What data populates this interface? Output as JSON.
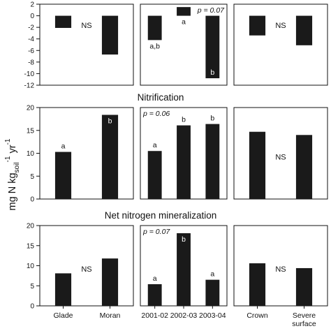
{
  "figure": {
    "ylabel": {
      "main": "mg N kg",
      "sub": "soil",
      "sup1": "-1",
      "mid": " yr",
      "sup2": "-1"
    }
  },
  "chart_data": [
    {
      "type": "bar",
      "row": 0,
      "col": 0,
      "title": "",
      "categories": [
        "Glade",
        "Moran"
      ],
      "values": [
        -2.1,
        -6.7
      ],
      "ylim": [
        -12,
        2
      ],
      "yticks": [
        2,
        0,
        -2,
        -4,
        -6,
        -8,
        -10,
        -12
      ],
      "tick_labels": [
        "2",
        "0",
        "-2",
        "-4",
        "-6",
        "-8",
        "-10",
        "-12"
      ],
      "letters": [
        "",
        ""
      ],
      "annotation": "NS"
    },
    {
      "type": "bar",
      "row": 0,
      "col": 1,
      "title": "",
      "categories": [
        "2001-02",
        "2002-03",
        "2003-04"
      ],
      "values": [
        -4.2,
        1.5,
        -10.8
      ],
      "ylim": [
        -12,
        2
      ],
      "letters": [
        "a,b",
        "a",
        "b"
      ],
      "annotation": "p = 0.07"
    },
    {
      "type": "bar",
      "row": 0,
      "col": 2,
      "title": "",
      "categories": [
        "Crown",
        "Severe surface"
      ],
      "values": [
        -3.4,
        -5.1
      ],
      "ylim": [
        -12,
        2
      ],
      "letters": [
        "",
        ""
      ],
      "annotation": "NS"
    },
    {
      "type": "bar",
      "row": 1,
      "col": 0,
      "title": "Nitrification",
      "categories": [
        "Glade",
        "Moran"
      ],
      "values": [
        10.3,
        18.4
      ],
      "ylim": [
        0,
        20
      ],
      "yticks": [
        0,
        5,
        10,
        15,
        20
      ],
      "tick_labels": [
        "0",
        "5",
        "10",
        "15",
        "20"
      ],
      "letters": [
        "a",
        "b"
      ],
      "annotation": ""
    },
    {
      "type": "bar",
      "row": 1,
      "col": 1,
      "title": "",
      "categories": [
        "2001-02",
        "2002-03",
        "2003-04"
      ],
      "values": [
        10.5,
        16.1,
        16.4
      ],
      "ylim": [
        0,
        20
      ],
      "letters": [
        "a",
        "b",
        "b"
      ],
      "annotation": "p = 0.06"
    },
    {
      "type": "bar",
      "row": 1,
      "col": 2,
      "title": "",
      "categories": [
        "Crown",
        "Severe surface"
      ],
      "values": [
        14.7,
        14.0
      ],
      "ylim": [
        0,
        20
      ],
      "letters": [
        "",
        ""
      ],
      "annotation": "NS"
    },
    {
      "type": "bar",
      "row": 2,
      "col": 0,
      "title": "Net nitrogen mineralization",
      "categories": [
        "Glade",
        "Moran"
      ],
      "category_labels": [
        "Glade",
        "Moran"
      ],
      "values": [
        8.1,
        11.8
      ],
      "ylim": [
        0,
        20
      ],
      "yticks": [
        0,
        5,
        10,
        15,
        20
      ],
      "tick_labels": [
        "0",
        "5",
        "10",
        "15",
        "20"
      ],
      "letters": [
        "",
        ""
      ],
      "annotation": "NS"
    },
    {
      "type": "bar",
      "row": 2,
      "col": 1,
      "title": "",
      "categories": [
        "2001-02",
        "2002-03",
        "2003-04"
      ],
      "category_labels": [
        "2001-02",
        "2002-03",
        "2003-04"
      ],
      "values": [
        5.4,
        18.1,
        6.5
      ],
      "ylim": [
        0,
        20
      ],
      "letters": [
        "a",
        "b",
        "a"
      ],
      "annotation": "p = 0.07"
    },
    {
      "type": "bar",
      "row": 2,
      "col": 2,
      "title": "",
      "categories": [
        "Crown",
        "Severe surface"
      ],
      "category_labels": [
        "Crown",
        "Severe\nsurface"
      ],
      "values": [
        10.6,
        9.4
      ],
      "ylim": [
        0,
        20
      ],
      "letters": [
        "",
        ""
      ],
      "annotation": "NS"
    }
  ]
}
